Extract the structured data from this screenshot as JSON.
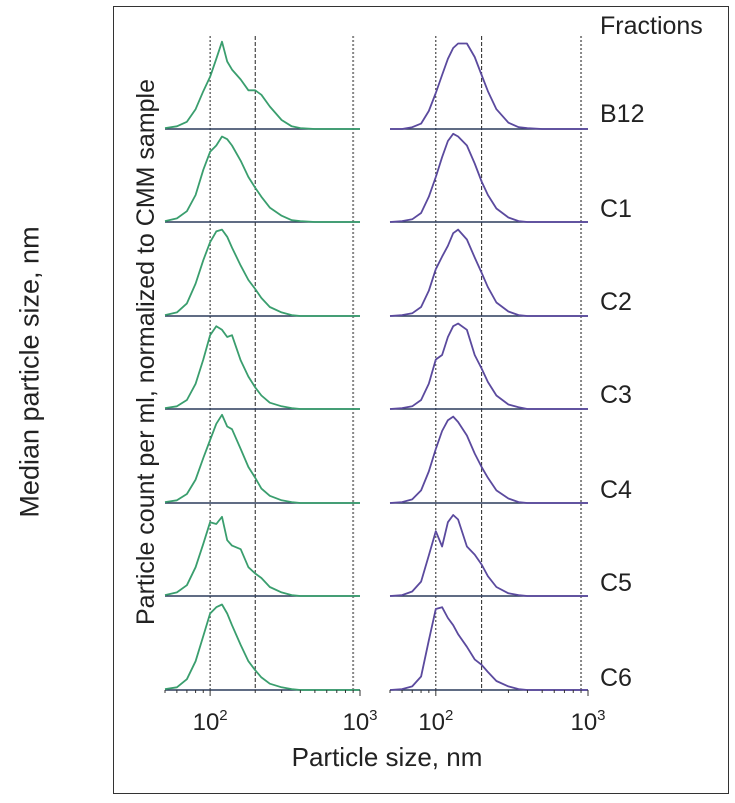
{
  "chart_data": {
    "type": "line",
    "outer_ylabel": "Median particle size, nm",
    "ylabel": "Particle count per ml, normalized to CMM sample",
    "xlabel": "Particle size, nm",
    "xscale": "log",
    "xlim": [
      50,
      1000
    ],
    "xticks": [
      {
        "base": "10",
        "exp": "2"
      },
      {
        "base": "10",
        "exp": "3"
      }
    ],
    "legend_title": "Fractions",
    "fractions": [
      "B12",
      "C1",
      "C2",
      "C3",
      "C4",
      "C5",
      "C6"
    ],
    "panels": [
      {
        "color": "#3a9e6e",
        "reference_lines": [
          100,
          200,
          900
        ],
        "series": [
          {
            "name": "B12",
            "x": [
              50,
              60,
              70,
              80,
              90,
              100,
              110,
              120,
              130,
              140,
              160,
              180,
              200,
              220,
              250,
              300,
              350,
              400,
              500,
              700,
              1000
            ],
            "y": [
              0.01,
              0.03,
              0.08,
              0.22,
              0.42,
              0.58,
              0.78,
              0.97,
              0.75,
              0.66,
              0.55,
              0.43,
              0.43,
              0.38,
              0.25,
              0.1,
              0.03,
              0.01,
              0,
              0,
              0
            ]
          },
          {
            "name": "C1",
            "x": [
              50,
              60,
              70,
              80,
              90,
              100,
              110,
              120,
              130,
              140,
              160,
              180,
              200,
              220,
              250,
              300,
              350,
              400,
              500,
              700,
              1000
            ],
            "y": [
              0.01,
              0.04,
              0.12,
              0.3,
              0.58,
              0.78,
              0.85,
              0.95,
              0.92,
              0.85,
              0.68,
              0.5,
              0.38,
              0.28,
              0.16,
              0.07,
              0.02,
              0.01,
              0,
              0,
              0
            ]
          },
          {
            "name": "C2",
            "x": [
              50,
              60,
              70,
              80,
              90,
              100,
              110,
              120,
              130,
              140,
              160,
              180,
              200,
              220,
              250,
              300,
              350,
              400,
              500,
              700,
              1000
            ],
            "y": [
              0.01,
              0.04,
              0.14,
              0.36,
              0.62,
              0.82,
              0.94,
              0.96,
              0.88,
              0.76,
              0.56,
              0.4,
              0.3,
              0.2,
              0.1,
              0.04,
              0.01,
              0,
              0,
              0,
              0
            ]
          },
          {
            "name": "C3",
            "x": [
              50,
              60,
              70,
              80,
              90,
              100,
              110,
              120,
              130,
              140,
              160,
              180,
              200,
              220,
              250,
              300,
              350,
              400,
              500,
              700,
              1000
            ],
            "y": [
              0.01,
              0.03,
              0.1,
              0.28,
              0.55,
              0.82,
              0.92,
              0.88,
              0.8,
              0.82,
              0.54,
              0.36,
              0.24,
              0.15,
              0.07,
              0.03,
              0.01,
              0,
              0,
              0,
              0
            ]
          },
          {
            "name": "C4",
            "x": [
              50,
              60,
              70,
              80,
              90,
              100,
              110,
              120,
              130,
              140,
              160,
              180,
              200,
              220,
              250,
              300,
              350,
              400,
              500,
              700,
              1000
            ],
            "y": [
              0.01,
              0.03,
              0.1,
              0.26,
              0.5,
              0.7,
              0.88,
              0.98,
              0.85,
              0.82,
              0.6,
              0.4,
              0.28,
              0.16,
              0.08,
              0.03,
              0.01,
              0,
              0,
              0,
              0
            ]
          },
          {
            "name": "C5",
            "x": [
              50,
              60,
              70,
              80,
              90,
              100,
              110,
              120,
              130,
              140,
              160,
              180,
              200,
              220,
              250,
              300,
              350,
              400,
              500,
              700,
              1000
            ],
            "y": [
              0.01,
              0.04,
              0.12,
              0.32,
              0.58,
              0.82,
              0.8,
              0.88,
              0.62,
              0.56,
              0.52,
              0.32,
              0.25,
              0.2,
              0.1,
              0.04,
              0.01,
              0,
              0,
              0,
              0
            ]
          },
          {
            "name": "C6",
            "x": [
              50,
              60,
              70,
              80,
              90,
              100,
              110,
              120,
              130,
              140,
              160,
              180,
              200,
              220,
              250,
              300,
              350,
              400,
              500,
              700,
              1000
            ],
            "y": [
              0.01,
              0.03,
              0.12,
              0.32,
              0.6,
              0.85,
              0.92,
              0.95,
              0.85,
              0.72,
              0.5,
              0.32,
              0.22,
              0.14,
              0.07,
              0.03,
              0.01,
              0,
              0,
              0,
              0
            ]
          }
        ]
      },
      {
        "color": "#5b4a9e",
        "reference_lines": [
          100,
          200,
          900
        ],
        "series": [
          {
            "name": "B12",
            "x": [
              50,
              60,
              70,
              80,
              90,
              100,
              110,
              120,
              130,
              140,
              160,
              180,
              200,
              220,
              250,
              300,
              350,
              400,
              500,
              700,
              1000
            ],
            "y": [
              0,
              0,
              0.02,
              0.06,
              0.2,
              0.4,
              0.6,
              0.78,
              0.9,
              0.95,
              0.95,
              0.8,
              0.6,
              0.42,
              0.22,
              0.07,
              0.02,
              0.01,
              0,
              0,
              0
            ]
          },
          {
            "name": "C1",
            "x": [
              50,
              60,
              70,
              80,
              90,
              100,
              110,
              120,
              130,
              140,
              160,
              180,
              200,
              220,
              250,
              300,
              350,
              400,
              500,
              700,
              1000
            ],
            "y": [
              0,
              0.01,
              0.03,
              0.1,
              0.28,
              0.5,
              0.72,
              0.9,
              0.98,
              0.95,
              0.85,
              0.65,
              0.45,
              0.3,
              0.15,
              0.05,
              0.01,
              0,
              0,
              0,
              0
            ]
          },
          {
            "name": "C2",
            "x": [
              50,
              60,
              70,
              80,
              90,
              100,
              110,
              120,
              130,
              140,
              160,
              180,
              200,
              220,
              250,
              300,
              350,
              400,
              500,
              700,
              1000
            ],
            "y": [
              0,
              0.01,
              0.03,
              0.1,
              0.28,
              0.52,
              0.66,
              0.78,
              0.92,
              0.96,
              0.85,
              0.65,
              0.48,
              0.32,
              0.15,
              0.05,
              0.01,
              0,
              0,
              0,
              0
            ]
          },
          {
            "name": "C3",
            "x": [
              50,
              60,
              70,
              80,
              90,
              100,
              110,
              120,
              130,
              140,
              160,
              180,
              200,
              220,
              250,
              300,
              350,
              400,
              500,
              700,
              1000
            ],
            "y": [
              0,
              0.01,
              0.03,
              0.1,
              0.28,
              0.55,
              0.6,
              0.8,
              0.92,
              0.95,
              0.88,
              0.6,
              0.45,
              0.3,
              0.15,
              0.05,
              0.02,
              0,
              0,
              0,
              0
            ]
          },
          {
            "name": "C4",
            "x": [
              50,
              60,
              70,
              80,
              90,
              100,
              110,
              120,
              130,
              140,
              160,
              180,
              200,
              220,
              250,
              300,
              350,
              400,
              500,
              700,
              1000
            ],
            "y": [
              0,
              0.01,
              0.04,
              0.14,
              0.35,
              0.6,
              0.8,
              0.92,
              0.96,
              0.9,
              0.75,
              0.55,
              0.4,
              0.28,
              0.14,
              0.05,
              0.01,
              0,
              0,
              0,
              0
            ]
          },
          {
            "name": "C5",
            "x": [
              50,
              60,
              70,
              80,
              90,
              100,
              110,
              120,
              130,
              140,
              160,
              180,
              200,
              220,
              250,
              300,
              350,
              400,
              500,
              700,
              1000
            ],
            "y": [
              0,
              0.01,
              0.05,
              0.16,
              0.45,
              0.72,
              0.55,
              0.82,
              0.9,
              0.85,
              0.55,
              0.46,
              0.35,
              0.22,
              0.1,
              0.03,
              0.01,
              0,
              0,
              0,
              0
            ]
          },
          {
            "name": "C6",
            "x": [
              50,
              60,
              70,
              80,
              90,
              100,
              110,
              120,
              130,
              140,
              160,
              180,
              200,
              220,
              250,
              300,
              350,
              400,
              500,
              700,
              1000
            ],
            "y": [
              0,
              0.01,
              0.04,
              0.15,
              0.55,
              0.9,
              0.92,
              0.8,
              0.72,
              0.62,
              0.48,
              0.34,
              0.28,
              0.2,
              0.1,
              0.04,
              0.01,
              0,
              0,
              0,
              0
            ]
          }
        ]
      }
    ]
  }
}
